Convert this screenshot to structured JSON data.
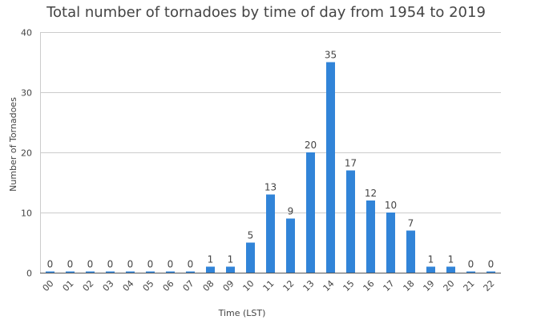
{
  "chart_data": {
    "type": "bar",
    "title": "Total number of tornadoes by time of day from 1954 to 2019",
    "xlabel": "Time (LST)",
    "ylabel": "Number of Tornadoes",
    "categories": [
      "00",
      "01",
      "02",
      "03",
      "04",
      "05",
      "06",
      "07",
      "08",
      "09",
      "10",
      "11",
      "12",
      "13",
      "14",
      "15",
      "16",
      "17",
      "18",
      "19",
      "20",
      "21",
      "22"
    ],
    "values": [
      0,
      0,
      0,
      0,
      0,
      0,
      0,
      0,
      1,
      1,
      5,
      13,
      9,
      20,
      35,
      17,
      12,
      10,
      7,
      1,
      1,
      0,
      0
    ],
    "ylim": [
      0,
      40
    ],
    "yticks": [
      0,
      10,
      20,
      30,
      40
    ],
    "grid": true,
    "legend": "none",
    "bar_color": "#3184d8"
  }
}
